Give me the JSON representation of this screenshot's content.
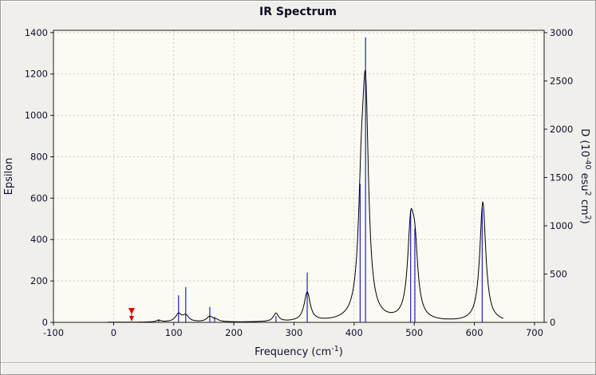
{
  "chart_data": {
    "type": "line",
    "title": "IR Spectrum",
    "xlabel": "Frequency (cm^-1)",
    "xlabel_parts": [
      {
        "t": "Frequency (cm"
      },
      {
        "t": "-1",
        "sup": true
      },
      {
        "t": ")"
      }
    ],
    "ylabel_left": "Epsilon",
    "ylabel_right": "D (10^-40 esu^2 cm^2)",
    "ylabel_right_parts": [
      {
        "t": "D (10"
      },
      {
        "t": "-40",
        "sup": true
      },
      {
        "t": " esu"
      },
      {
        "t": "2",
        "sup": true
      },
      {
        "t": " cm"
      },
      {
        "t": "2",
        "sup": true
      },
      {
        "t": ")"
      }
    ],
    "x_range": [
      -100,
      716
    ],
    "x_ticks": [
      -100,
      0,
      100,
      200,
      300,
      400,
      500,
      600,
      700
    ],
    "y_left_range": [
      0,
      1411
    ],
    "y_left_ticks": [
      0,
      200,
      400,
      600,
      800,
      1000,
      1200,
      1400
    ],
    "y_right_range": [
      0,
      3024
    ],
    "y_right_ticks": [
      0,
      500,
      1000,
      1500,
      2000,
      2500,
      3000
    ],
    "grid": true,
    "curve_series": {
      "axis": "left",
      "domain": [
        -10,
        648
      ],
      "lorentzian_peaks": [
        {
          "x": 75,
          "amp": 8,
          "hwhm": 5
        },
        {
          "x": 108,
          "amp": 38,
          "hwhm": 6
        },
        {
          "x": 120,
          "amp": 30,
          "hwhm": 6
        },
        {
          "x": 160,
          "amp": 25,
          "hwhm": 6
        },
        {
          "x": 170,
          "amp": 10,
          "hwhm": 6
        },
        {
          "x": 270,
          "amp": 40,
          "hwhm": 5
        },
        {
          "x": 322,
          "amp": 140,
          "hwhm": 6
        },
        {
          "x": 412,
          "amp": 480,
          "hwhm": 6
        },
        {
          "x": 419,
          "amp": 1000,
          "hwhm": 6
        },
        {
          "x": 494,
          "amp": 400,
          "hwhm": 6
        },
        {
          "x": 501,
          "amp": 300,
          "hwhm": 6
        },
        {
          "x": 614,
          "amp": 580,
          "hwhm": 6
        }
      ]
    },
    "stick_series": {
      "axis": "right",
      "points": [
        {
          "x": 75,
          "d": 32
        },
        {
          "x": 108,
          "d": 280
        },
        {
          "x": 120,
          "d": 365
        },
        {
          "x": 160,
          "d": 160
        },
        {
          "x": 168,
          "d": 55
        },
        {
          "x": 270,
          "d": 65
        },
        {
          "x": 322,
          "d": 515
        },
        {
          "x": 410,
          "d": 1435
        },
        {
          "x": 419,
          "d": 2950
        },
        {
          "x": 494,
          "d": 1160
        },
        {
          "x": 501,
          "d": 975
        },
        {
          "x": 613,
          "d": 1180
        }
      ]
    },
    "cursor_marker": {
      "x": 30,
      "color": "#cc1100"
    },
    "colors": {
      "curve": "#000000",
      "sticks": "#2222c2",
      "grid": "#cbcbcb",
      "plot_bg": "#fbfaf3",
      "frame": "#1a1a1a",
      "window_bg": "#f1efeb",
      "text": "#10102f"
    }
  }
}
